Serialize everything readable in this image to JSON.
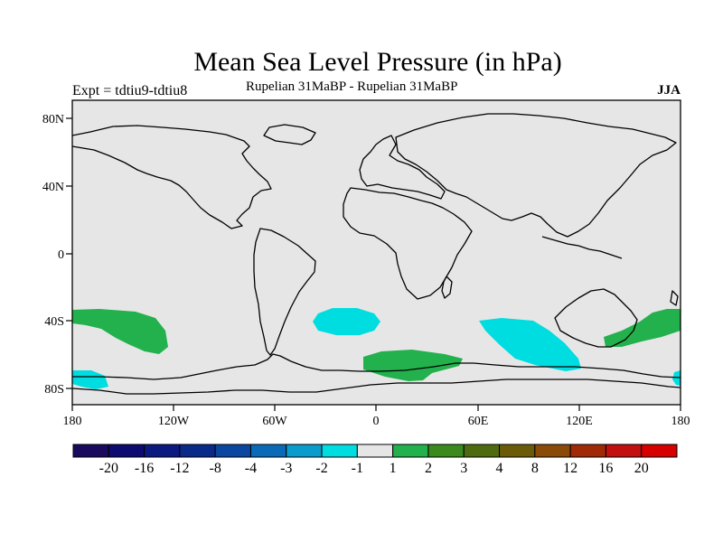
{
  "header": {
    "title": "Mean Sea Level Pressure (in hPa)",
    "left_string": "Expt = tdtiu9-tdtiu8",
    "center_string": "Rupelian  31MaBP - Rupelian  31MaBP",
    "right_string": "JJA"
  },
  "axes": {
    "x_ticks": [
      "180",
      "120W",
      "60W",
      "0",
      "60E",
      "120E",
      "180"
    ],
    "y_ticks": [
      "80N",
      "40N",
      "0",
      "40S",
      "80S"
    ]
  },
  "colorbar": {
    "labels": [
      "-20",
      "-16",
      "-12",
      "-8",
      "-4",
      "-3",
      "-2",
      "-1",
      "1",
      "2",
      "3",
      "4",
      "8",
      "12",
      "16",
      "20"
    ],
    "colors": [
      "#1a0a5e",
      "#0d0a72",
      "#0a1a80",
      "#0a2a8a",
      "#0a47a0",
      "#0a6ab8",
      "#0a9ccc",
      "#00dde0",
      "#e6e6e6",
      "#22b14c",
      "#3c8a1e",
      "#4f6b10",
      "#6b5a08",
      "#8a4a08",
      "#a02a08",
      "#c21010",
      "#d60000"
    ]
  },
  "map": {
    "background": "#e6e6e6",
    "coast_color": "#000000",
    "fill_positive": "#22b14c",
    "fill_negative": "#00dde0"
  }
}
